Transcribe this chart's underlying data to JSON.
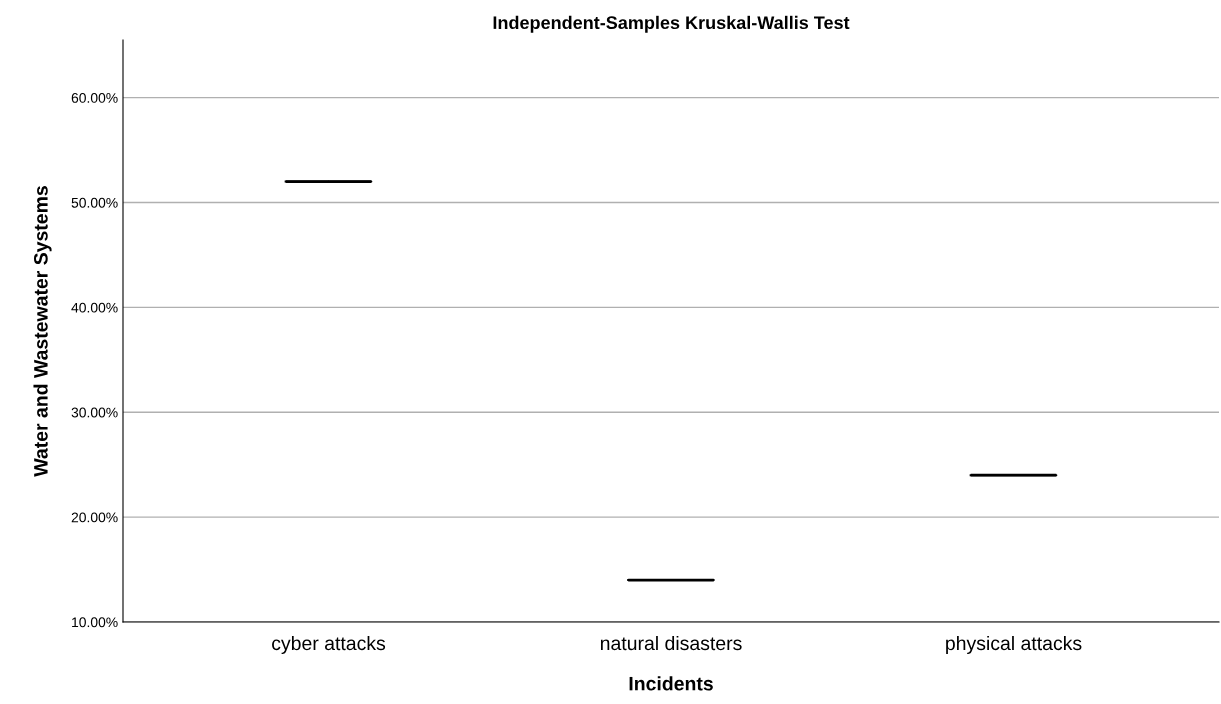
{
  "chart_data": {
    "type": "box",
    "title": "Independent-Samples Kruskal-Wallis Test",
    "xlabel": "Incidents",
    "ylabel": "Water and Wastewater Systems",
    "categories": [
      "cyber attacks",
      "natural disasters",
      "physical attacks"
    ],
    "color": "#000000",
    "boxes": [
      {
        "low": 52,
        "q1": 52,
        "median": 52,
        "q3": 52,
        "high": 52
      },
      {
        "low": 14,
        "q1": 14,
        "median": 14,
        "q3": 14,
        "high": 14
      },
      {
        "low": 24,
        "q1": 24,
        "median": 24,
        "q3": 24,
        "high": 24
      }
    ],
    "ylim": [
      10,
      65.5
    ],
    "yticks": [
      {
        "value": 10,
        "label": "10.00%"
      },
      {
        "value": 20,
        "label": "20.00%"
      },
      {
        "value": 30,
        "label": "30.00%"
      },
      {
        "value": 40,
        "label": "40.00%"
      },
      {
        "value": 50,
        "label": "50.00%"
      },
      {
        "value": 60,
        "label": "60.00%"
      }
    ],
    "grid": "y"
  }
}
